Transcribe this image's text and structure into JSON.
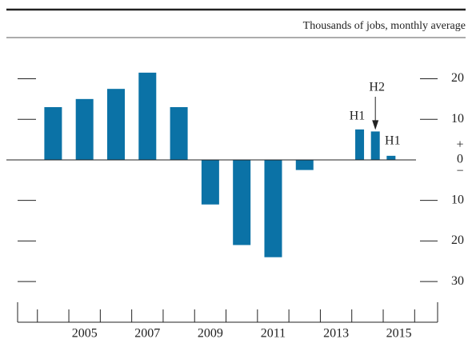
{
  "chart_data": {
    "type": "bar",
    "unit_label": "Thousands of jobs, monthly average",
    "x": [
      2004.5,
      2005.5,
      2006.5,
      2007.5,
      2008.5,
      2009.5,
      2010.5,
      2011.5,
      2012.5,
      2014.25,
      2014.75,
      2015.25
    ],
    "values": [
      13,
      15,
      17.5,
      21.5,
      13,
      -11,
      -21,
      -24,
      -2.5,
      7.5,
      7,
      1
    ],
    "color": "#0b72a6",
    "xlim": [
      2003.37,
      2016.73
    ],
    "xticks": [
      {
        "value": 2005.5,
        "label": "2005"
      },
      {
        "value": 2007.5,
        "label": "2007"
      },
      {
        "value": 2009.5,
        "label": "2009"
      },
      {
        "value": 2011.5,
        "label": "2011"
      },
      {
        "value": 2013.5,
        "label": "2013"
      },
      {
        "value": 2015.5,
        "label": "2015"
      }
    ],
    "xminorticks": [
      2004,
      2005,
      2006,
      2007,
      2008,
      2009,
      2010,
      2011,
      2012,
      2013,
      2014,
      2015,
      2016
    ],
    "ylim": [
      -35.1,
      26.6
    ],
    "yticks": [
      {
        "value": 20,
        "label": "20"
      },
      {
        "value": 10,
        "label": "10"
      },
      {
        "value": -10,
        "label": "10"
      },
      {
        "value": -20,
        "label": "20"
      },
      {
        "value": -30,
        "label": "30"
      }
    ],
    "zero_label": "0",
    "plus_sign": "+",
    "minus_sign": "−",
    "annotations": [
      "H1",
      "H2",
      "H1"
    ]
  }
}
